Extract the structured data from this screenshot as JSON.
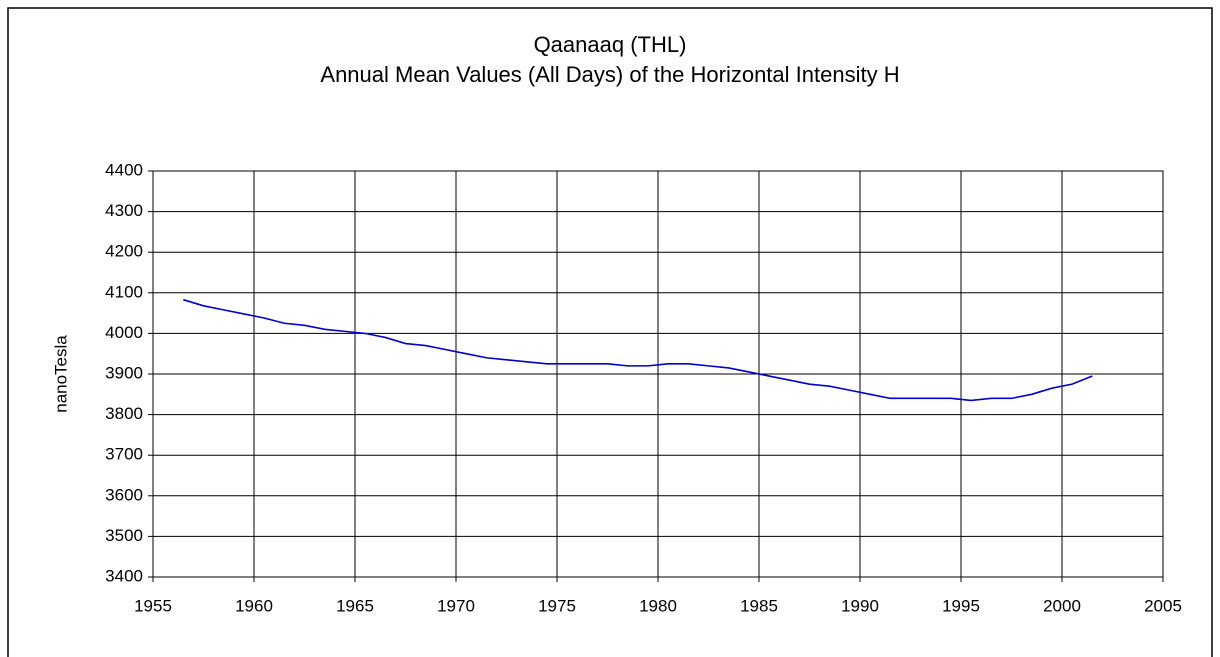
{
  "chart_data": {
    "type": "line",
    "title": "Qaanaaq (THL)",
    "subtitle": "Annual Mean Values (All Days) of the Horizontal Intensity H",
    "y_label": "nanoTesla",
    "x": [
      1956.5,
      1957.5,
      1958.5,
      1959.5,
      1960.5,
      1961.5,
      1962.5,
      1963.5,
      1964.5,
      1965.5,
      1966.5,
      1967.5,
      1968.5,
      1969.5,
      1970.5,
      1971.5,
      1972.5,
      1973.5,
      1974.5,
      1975.5,
      1976.5,
      1977.5,
      1978.5,
      1979.5,
      1980.5,
      1981.5,
      1982.5,
      1983.5,
      1984.5,
      1985.5,
      1986.5,
      1987.5,
      1988.5,
      1989.5,
      1990.5,
      1991.5,
      1992.5,
      1993.5,
      1994.5,
      1995.5,
      1996.5,
      1997.5,
      1998.5,
      1999.5,
      2000.5,
      2001.5
    ],
    "series": [
      {
        "name": "H",
        "color": "#0000cc",
        "values": [
          4083,
          4068,
          4058,
          4048,
          4038,
          4025,
          4020,
          4010,
          4005,
          4000,
          3990,
          3975,
          3970,
          3960,
          3950,
          3940,
          3935,
          3930,
          3925,
          3925,
          3925,
          3925,
          3920,
          3920,
          3925,
          3925,
          3920,
          3915,
          3905,
          3895,
          3885,
          3875,
          3870,
          3860,
          3850,
          3840,
          3840,
          3840,
          3840,
          3835,
          3840,
          3840,
          3850,
          3865,
          3875,
          3895
        ]
      }
    ],
    "xlim": [
      1955,
      2005
    ],
    "xticks": [
      1955,
      1960,
      1965,
      1970,
      1975,
      1980,
      1985,
      1990,
      1995,
      2000,
      2005
    ],
    "ylim": [
      3400,
      4400
    ],
    "yticks": [
      3400,
      3500,
      3600,
      3700,
      3800,
      3900,
      4000,
      4100,
      4200,
      4300,
      4400
    ],
    "grid": true
  }
}
